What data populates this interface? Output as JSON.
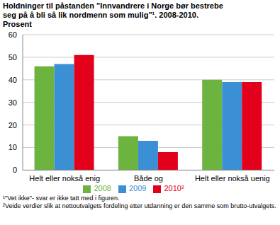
{
  "chart_data": {
    "type": "bar",
    "title": "Holdninger til påstanden \"Innvandrere i Norge bør bestrebe seg på å bli så lik nordmenn som mulig\"¹. 2008-2010. Prosent",
    "categories": [
      "Helt eller nokså enig",
      "Både og",
      "Helt eller nokså uenig"
    ],
    "series": [
      {
        "name": "2008",
        "color": "#6db33f",
        "values": [
          46,
          15,
          40
        ]
      },
      {
        "name": "2009",
        "color": "#3b8fd4",
        "values": [
          47,
          13,
          39
        ]
      },
      {
        "name": "2010²",
        "color": "#e2001a",
        "values": [
          51,
          8,
          39
        ]
      }
    ],
    "ylim": [
      0,
      60
    ],
    "yticks": [
      0,
      10,
      20,
      30,
      40,
      50,
      60
    ],
    "grid": true,
    "legend": "bottom",
    "notes": [
      "¹\"Vet ikke\"- svar er ikke tatt med i figuren.",
      "²Veide verdier slik at nettoutvalgets fordeling etter utdanning er den samme som brutto-utvalgets."
    ]
  }
}
